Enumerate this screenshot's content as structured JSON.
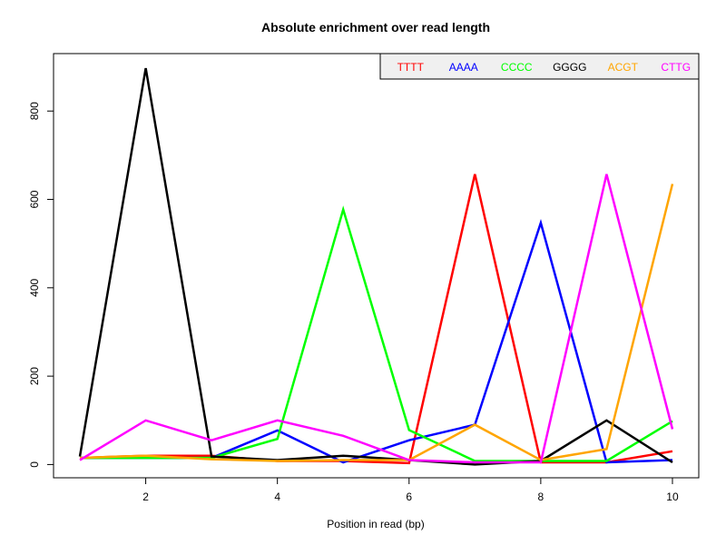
{
  "chart_data": {
    "type": "line",
    "title": "Absolute enrichment over read length",
    "xlabel": "Position in read (bp)",
    "ylabel": "",
    "xlim": [
      0.6,
      10.4
    ],
    "ylim": [
      -30,
      930
    ],
    "xticks": [
      2,
      4,
      6,
      8,
      10
    ],
    "yticks": [
      0,
      200,
      400,
      600,
      800
    ],
    "legend": "top-right",
    "x": [
      1,
      2,
      3,
      4,
      5,
      6,
      7,
      8,
      9,
      10
    ],
    "series": [
      {
        "name": "TTTT",
        "color": "#ff0000",
        "values": [
          15,
          20,
          20,
          8,
          8,
          3,
          657,
          5,
          5,
          30
        ]
      },
      {
        "name": "AAAA",
        "color": "#0000ff",
        "values": [
          15,
          15,
          15,
          77,
          5,
          55,
          90,
          547,
          5,
          10
        ]
      },
      {
        "name": "CCCC",
        "color": "#00ff00",
        "values": [
          15,
          15,
          15,
          58,
          577,
          78,
          8,
          8,
          8,
          98
        ]
      },
      {
        "name": "GGGG",
        "color": "#000000",
        "values": [
          18,
          897,
          18,
          10,
          20,
          10,
          0,
          8,
          100,
          5
        ]
      },
      {
        "name": "ACGT",
        "color": "#ffa500",
        "values": [
          15,
          20,
          12,
          8,
          10,
          10,
          90,
          10,
          35,
          635
        ]
      },
      {
        "name": "CTTG",
        "color": "#ff00ff",
        "values": [
          10,
          100,
          55,
          100,
          65,
          10,
          5,
          5,
          657,
          80
        ]
      }
    ]
  }
}
